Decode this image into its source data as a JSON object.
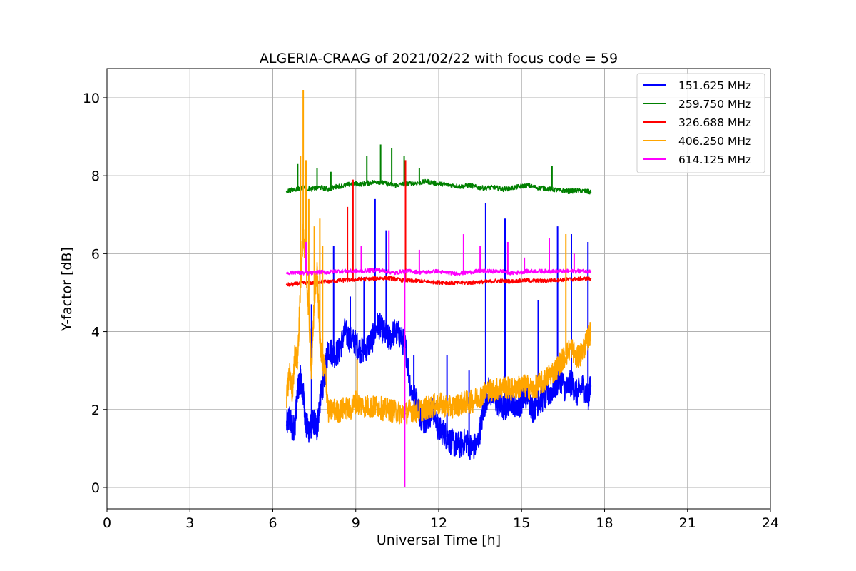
{
  "chart_data": {
    "type": "line",
    "title": "ALGERIA-CRAAG of 2021/02/22 with focus code = 59",
    "xlabel": "Universal Time [h]",
    "ylabel": "Y-factor [dB]",
    "xlim": [
      0,
      24
    ],
    "ylim": [
      -0.55,
      10.75
    ],
    "xticks": [
      0,
      3,
      6,
      9,
      12,
      15,
      18,
      21,
      24
    ],
    "yticks": [
      0,
      2,
      4,
      6,
      8,
      10
    ],
    "grid": true,
    "legend_position": "top-right",
    "series": [
      {
        "name": "151.625 MHz",
        "color": "#0000ff",
        "x": [
          6.5,
          6.6,
          6.7,
          6.8,
          6.9,
          7.0,
          7.1,
          7.2,
          7.3,
          7.4,
          7.5,
          7.6,
          7.7,
          7.8,
          7.9,
          8.0,
          8.2,
          8.4,
          8.6,
          8.8,
          9.0,
          9.2,
          9.4,
          9.6,
          9.8,
          10.0,
          10.2,
          10.4,
          10.6,
          10.8,
          11.0,
          11.2,
          11.4,
          11.6,
          11.8,
          12.0,
          12.2,
          12.4,
          12.6,
          12.8,
          13.0,
          13.2,
          13.4,
          13.6,
          13.8,
          14.0,
          14.2,
          14.4,
          14.6,
          14.8,
          15.0,
          15.2,
          15.4,
          15.6,
          15.8,
          16.0,
          16.2,
          16.4,
          16.6,
          16.8,
          17.0,
          17.2,
          17.4,
          17.5
        ],
        "y": [
          1.6,
          1.8,
          1.5,
          1.6,
          2.5,
          2.8,
          2.4,
          1.6,
          1.5,
          1.6,
          1.7,
          1.5,
          2.2,
          2.6,
          3.0,
          3.6,
          3.4,
          3.5,
          4.0,
          3.8,
          3.7,
          3.5,
          3.6,
          3.8,
          4.2,
          4.0,
          3.8,
          4.0,
          3.9,
          3.6,
          2.5,
          2.2,
          1.7,
          1.8,
          2.0,
          1.5,
          1.4,
          1.2,
          1.1,
          1.1,
          1.2,
          1.0,
          1.1,
          1.9,
          2.5,
          2.3,
          2.1,
          2.0,
          2.3,
          2.1,
          2.2,
          2.4,
          2.0,
          2.2,
          2.3,
          2.4,
          2.6,
          2.8,
          2.5,
          2.7,
          2.4,
          2.6,
          2.3,
          2.6
        ],
        "spikes": [
          [
            7.4,
            4.7
          ],
          [
            8.2,
            6.2
          ],
          [
            8.8,
            4.9
          ],
          [
            9.3,
            5.4
          ],
          [
            9.7,
            7.4
          ],
          [
            10.1,
            6.6
          ],
          [
            11.1,
            3.4
          ],
          [
            12.3,
            3.4
          ],
          [
            13.1,
            3.0
          ],
          [
            13.7,
            7.3
          ],
          [
            14.4,
            6.9
          ],
          [
            15.6,
            4.8
          ],
          [
            16.3,
            6.7
          ],
          [
            16.8,
            6.5
          ],
          [
            17.4,
            6.3
          ]
        ]
      },
      {
        "name": "259.750 MHz",
        "color": "#008000",
        "x": [
          6.5,
          6.8,
          7.1,
          7.4,
          7.7,
          8.0,
          8.3,
          8.6,
          8.9,
          9.2,
          9.5,
          9.8,
          10.1,
          10.4,
          10.7,
          11.0,
          11.3,
          11.6,
          11.9,
          12.2,
          12.5,
          12.8,
          13.1,
          13.4,
          13.7,
          14.0,
          14.3,
          14.6,
          14.9,
          15.2,
          15.5,
          15.8,
          16.1,
          16.4,
          16.7,
          17.0,
          17.3,
          17.5
        ],
        "y": [
          7.6,
          7.65,
          7.7,
          7.65,
          7.7,
          7.65,
          7.72,
          7.75,
          7.8,
          7.78,
          7.82,
          7.85,
          7.8,
          7.75,
          7.78,
          7.8,
          7.82,
          7.85,
          7.8,
          7.78,
          7.75,
          7.72,
          7.75,
          7.7,
          7.68,
          7.7,
          7.65,
          7.68,
          7.72,
          7.75,
          7.7,
          7.68,
          7.65,
          7.62,
          7.6,
          7.62,
          7.6,
          7.58
        ],
        "spikes": [
          [
            6.9,
            8.3
          ],
          [
            7.6,
            8.2
          ],
          [
            8.1,
            8.1
          ],
          [
            9.4,
            8.5
          ],
          [
            9.9,
            8.8
          ],
          [
            10.3,
            8.7
          ],
          [
            10.75,
            8.5
          ],
          [
            11.3,
            8.2
          ],
          [
            16.1,
            8.25
          ]
        ]
      },
      {
        "name": "326.688 MHz",
        "color": "#ff0000",
        "x": [
          6.5,
          6.8,
          7.1,
          7.4,
          7.7,
          8.0,
          8.3,
          8.6,
          8.9,
          9.2,
          9.5,
          9.8,
          10.1,
          10.4,
          10.7,
          11.0,
          11.3,
          11.6,
          11.9,
          12.2,
          12.5,
          12.8,
          13.1,
          13.4,
          13.7,
          14.0,
          14.3,
          14.6,
          14.9,
          15.2,
          15.5,
          15.8,
          16.1,
          16.4,
          16.7,
          17.0,
          17.3,
          17.5
        ],
        "y": [
          5.2,
          5.22,
          5.25,
          5.25,
          5.28,
          5.28,
          5.3,
          5.32,
          5.33,
          5.35,
          5.35,
          5.37,
          5.38,
          5.35,
          5.32,
          5.3,
          5.3,
          5.28,
          5.27,
          5.26,
          5.25,
          5.25,
          5.25,
          5.27,
          5.28,
          5.3,
          5.3,
          5.29,
          5.3,
          5.32,
          5.3,
          5.3,
          5.32,
          5.33,
          5.34,
          5.35,
          5.36,
          5.36
        ],
        "spikes": [
          [
            8.7,
            7.2
          ],
          [
            8.9,
            7.9
          ],
          [
            10.8,
            8.4
          ]
        ]
      },
      {
        "name": "406.250 MHz",
        "color": "#ffa500",
        "x": [
          6.5,
          6.6,
          6.7,
          6.8,
          6.9,
          7.0,
          7.1,
          7.2,
          7.3,
          7.4,
          7.5,
          7.6,
          7.7,
          7.8,
          7.9,
          8.0,
          8.2,
          8.4,
          8.6,
          8.8,
          9.0,
          9.2,
          9.4,
          9.6,
          9.8,
          10.0,
          10.2,
          10.4,
          10.6,
          10.8,
          11.0,
          11.2,
          11.4,
          11.6,
          11.8,
          12.0,
          12.2,
          12.4,
          12.6,
          12.8,
          13.0,
          13.2,
          13.4,
          13.6,
          13.8,
          14.0,
          14.2,
          14.4,
          14.6,
          14.8,
          15.0,
          15.2,
          15.4,
          15.6,
          15.8,
          16.0,
          16.2,
          16.4,
          16.6,
          16.8,
          17.0,
          17.2,
          17.4,
          17.5
        ],
        "y": [
          2.3,
          3.0,
          2.4,
          3.4,
          3.2,
          5.2,
          6.6,
          5.6,
          4.5,
          3.0,
          4.8,
          5.6,
          3.8,
          3.2,
          3.0,
          1.95,
          2.0,
          1.95,
          2.05,
          2.0,
          2.2,
          2.1,
          2.1,
          2.05,
          2.1,
          2.0,
          2.0,
          1.95,
          1.92,
          1.9,
          2.0,
          1.95,
          2.0,
          2.05,
          2.1,
          2.15,
          2.1,
          2.05,
          2.1,
          2.15,
          2.2,
          2.2,
          2.3,
          2.4,
          2.5,
          2.5,
          2.55,
          2.6,
          2.5,
          2.55,
          2.6,
          2.6,
          2.5,
          2.65,
          2.7,
          2.9,
          3.0,
          3.2,
          3.4,
          3.6,
          3.3,
          3.5,
          3.8,
          4.0
        ],
        "spikes": [
          [
            7.0,
            8.5
          ],
          [
            7.1,
            10.2
          ],
          [
            7.2,
            8.4
          ],
          [
            7.3,
            7.4
          ],
          [
            7.5,
            6.7
          ],
          [
            7.7,
            6.9
          ],
          [
            7.8,
            6.2
          ],
          [
            9.05,
            3.3
          ],
          [
            16.6,
            6.5
          ]
        ]
      },
      {
        "name": "614.125 MHz",
        "color": "#ff00ff",
        "x": [
          6.5,
          6.8,
          7.1,
          7.4,
          7.7,
          8.0,
          8.3,
          8.6,
          8.9,
          9.2,
          9.5,
          9.8,
          10.1,
          10.4,
          10.7,
          11.0,
          11.3,
          11.6,
          11.9,
          12.2,
          12.5,
          12.8,
          13.1,
          13.4,
          13.7,
          14.0,
          14.3,
          14.6,
          14.9,
          15.2,
          15.5,
          15.8,
          16.1,
          16.4,
          16.7,
          17.0,
          17.3,
          17.5
        ],
        "y": [
          5.5,
          5.52,
          5.5,
          5.5,
          5.53,
          5.52,
          5.55,
          5.55,
          5.55,
          5.55,
          5.57,
          5.58,
          5.55,
          5.5,
          5.55,
          5.55,
          5.52,
          5.53,
          5.55,
          5.52,
          5.5,
          5.5,
          5.52,
          5.55,
          5.55,
          5.55,
          5.55,
          5.5,
          5.52,
          5.55,
          5.55,
          5.55,
          5.55,
          5.55,
          5.55,
          5.55,
          5.55,
          5.55
        ],
        "spikes": [
          [
            7.2,
            6.3
          ],
          [
            9.2,
            6.2
          ],
          [
            10.2,
            6.6
          ],
          [
            10.77,
            0.0
          ],
          [
            11.3,
            6.1
          ],
          [
            12.9,
            6.5
          ],
          [
            13.5,
            6.2
          ],
          [
            14.5,
            6.3
          ],
          [
            15.1,
            5.9
          ],
          [
            16.0,
            6.4
          ],
          [
            16.9,
            6.0
          ]
        ]
      }
    ]
  }
}
